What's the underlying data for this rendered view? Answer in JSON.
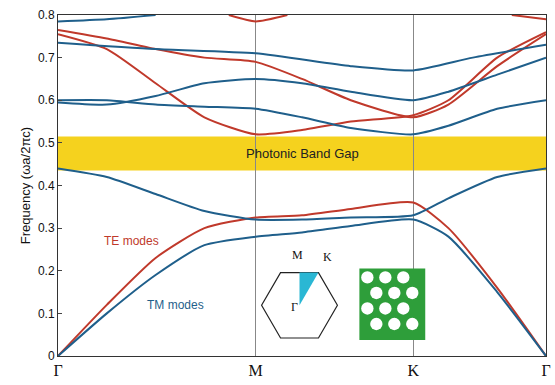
{
  "chart_data": {
    "type": "line",
    "y_label": "Frequency (ωa/2πc)",
    "xlim": [
      0,
      1
    ],
    "xticks": [
      {
        "value": 0,
        "label": "Γ"
      },
      {
        "value": 0.405,
        "label": "M"
      },
      {
        "value": 0.728,
        "label": "K"
      },
      {
        "value": 1,
        "label": "Γ"
      }
    ],
    "ylim": [
      0,
      0.8
    ],
    "yticks": [
      0,
      0.1,
      0.2,
      0.3,
      0.4,
      0.5,
      0.6,
      0.7,
      0.8
    ],
    "grid": "x",
    "legend": false,
    "band_gap": {
      "range": [
        0.435,
        0.515
      ],
      "label": "Photonic Band Gap",
      "color": "#f5d21e"
    },
    "inset_labels": [
      "M",
      "K",
      "Γ"
    ],
    "series": [
      {
        "name": "TE modes",
        "color": "#c0392b",
        "x": [
          0,
          0.1,
          0.2,
          0.3,
          0.405,
          0.5,
          0.6,
          0.728,
          0.8,
          0.9,
          1,
          null,
          0,
          0.1,
          0.2,
          0.3,
          0.405,
          0.5,
          0.6,
          0.728,
          0.8,
          0.9,
          1,
          null,
          0,
          0.1,
          0.2,
          0.3,
          0.405,
          0.5,
          0.6,
          0.728,
          0.8,
          0.9,
          1,
          null,
          0.35,
          0.405,
          0.47,
          null,
          0.93,
          1
        ],
        "values": [
          0,
          0.12,
          0.23,
          0.3,
          0.325,
          0.33,
          0.345,
          0.36,
          0.3,
          0.16,
          0,
          null,
          0.755,
          0.72,
          0.64,
          0.56,
          0.52,
          0.53,
          0.55,
          0.565,
          0.6,
          0.7,
          0.76,
          null,
          0.765,
          0.745,
          0.72,
          0.7,
          0.69,
          0.65,
          0.6,
          0.56,
          0.59,
          0.68,
          0.755,
          null,
          0.8,
          0.785,
          0.8,
          null,
          0.8,
          0.79
        ]
      },
      {
        "name": "TM modes",
        "color": "#1f5f8b",
        "x": [
          0,
          0.1,
          0.2,
          0.3,
          0.405,
          0.5,
          0.6,
          0.728,
          0.8,
          0.9,
          1,
          null,
          0,
          0.1,
          0.2,
          0.3,
          0.405,
          0.5,
          0.6,
          0.728,
          0.8,
          0.9,
          1,
          null,
          0,
          0.1,
          0.2,
          0.3,
          0.405,
          0.5,
          0.6,
          0.728,
          0.8,
          0.9,
          1,
          null,
          0,
          0.1,
          0.2,
          0.3,
          0.405,
          0.5,
          0.6,
          0.728,
          0.8,
          0.9,
          1,
          null,
          0,
          0.2,
          0.405,
          0.6,
          0.728,
          0.85,
          1,
          null,
          0,
          0.1,
          0.2
        ],
        "values": [
          0,
          0.1,
          0.19,
          0.26,
          0.28,
          0.29,
          0.305,
          0.32,
          0.28,
          0.15,
          0,
          null,
          0.44,
          0.42,
          0.38,
          0.34,
          0.32,
          0.32,
          0.325,
          0.33,
          0.37,
          0.42,
          0.44,
          null,
          0.6,
          0.6,
          0.59,
          0.585,
          0.58,
          0.56,
          0.535,
          0.52,
          0.54,
          0.58,
          0.6,
          null,
          0.595,
          0.59,
          0.61,
          0.64,
          0.65,
          0.64,
          0.62,
          0.6,
          0.62,
          0.66,
          0.7,
          null,
          0.735,
          0.72,
          0.71,
          0.68,
          0.67,
          0.7,
          0.73,
          null,
          0.785,
          0.79,
          0.8
        ]
      }
    ]
  }
}
